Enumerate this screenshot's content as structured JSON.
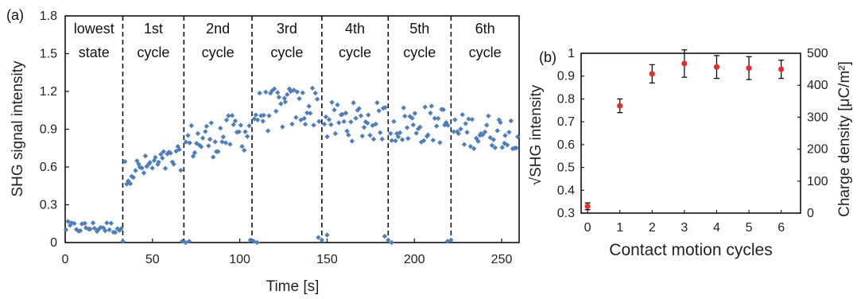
{
  "chart_data": [
    {
      "type": "scatter",
      "panel_label": "(a)",
      "xlabel": "Time [s]",
      "ylabel": "SHG signal intensity",
      "xlim": [
        0,
        260
      ],
      "ylim": [
        0,
        1.8
      ],
      "xticks": [
        "0",
        "50",
        "100",
        "150",
        "200",
        "250"
      ],
      "yticks": [
        "0",
        "0.3",
        "0.6",
        "0.9",
        "1.2",
        "1.5",
        "1.8"
      ],
      "grid": false,
      "point_color": "#4f7fba",
      "divider_times": [
        33,
        68,
        107,
        147,
        185,
        221
      ],
      "segments": [
        {
          "line1": "lowest",
          "line2": "state",
          "x0": 0,
          "x1": 33,
          "lo": 0.04,
          "hi": 0.2,
          "n": 28,
          "rise": 0.0
        },
        {
          "line1": "1st",
          "line2": "cycle",
          "x0": 34,
          "x1": 67,
          "lo": 0.45,
          "hi": 0.78,
          "n": 34,
          "rise": 0.12
        },
        {
          "line1": "2nd",
          "line2": "cycle",
          "x0": 69,
          "x1": 106,
          "lo": 0.58,
          "hi": 1.1,
          "n": 38,
          "rise": 0.1
        },
        {
          "line1": "3rd",
          "line2": "cycle",
          "x0": 108,
          "x1": 146,
          "lo": 0.78,
          "hi": 1.35,
          "n": 40,
          "rise": 0.06
        },
        {
          "line1": "4th",
          "line2": "cycle",
          "x0": 148,
          "x1": 184,
          "lo": 0.7,
          "hi": 1.22,
          "n": 38,
          "rise": 0.0
        },
        {
          "line1": "5th",
          "line2": "cycle",
          "x0": 186,
          "x1": 220,
          "lo": 0.68,
          "hi": 1.2,
          "n": 36,
          "rise": 0.0
        },
        {
          "line1": "6th",
          "line2": "cycle",
          "x0": 222,
          "x1": 260,
          "lo": 0.65,
          "hi": 1.12,
          "n": 38,
          "rise": 0.0
        }
      ],
      "zero_points": [
        {
          "x": 33,
          "y": 0.01
        },
        {
          "x": 67,
          "y": 0.01
        },
        {
          "x": 69,
          "y": 0.0
        },
        {
          "x": 71,
          "y": 0.01
        },
        {
          "x": 106,
          "y": 0.02
        },
        {
          "x": 108,
          "y": 0.01
        },
        {
          "x": 110,
          "y": 0.0
        },
        {
          "x": 145,
          "y": 0.04
        },
        {
          "x": 147,
          "y": 0.02
        },
        {
          "x": 150,
          "y": 0.06
        },
        {
          "x": 183,
          "y": 0.05
        },
        {
          "x": 185,
          "y": 0.02
        },
        {
          "x": 187,
          "y": 0.0
        },
        {
          "x": 219,
          "y": 0.01
        },
        {
          "x": 221,
          "y": 0.02
        }
      ]
    },
    {
      "type": "scatter",
      "panel_label": "(b)",
      "xlabel": "Contact motion cycles",
      "ylabel_left": "√SHG intensity",
      "ylabel_right": "Charge density [μC/m²]",
      "xlim": [
        -0.2,
        6.6
      ],
      "ylim_left": [
        0.3,
        1.0
      ],
      "ylim_right": [
        0,
        500
      ],
      "xticks": [
        "0",
        "1",
        "2",
        "3",
        "4",
        "5",
        "6"
      ],
      "yticks_left": [
        "0.3",
        "0.4",
        "0.5",
        "0.6",
        "0.7",
        "0.8",
        "0.9",
        "1"
      ],
      "yticks_right": [
        "0",
        "100",
        "200",
        "300",
        "400",
        "500"
      ],
      "grid": false,
      "marker_color": "#e03030",
      "errorbar_color": "#111111",
      "x": [
        0,
        1,
        2,
        3,
        4,
        5,
        6
      ],
      "y": [
        0.33,
        0.77,
        0.91,
        0.955,
        0.94,
        0.935,
        0.93
      ],
      "yerr": [
        0.015,
        0.03,
        0.04,
        0.06,
        0.05,
        0.05,
        0.04
      ]
    }
  ]
}
